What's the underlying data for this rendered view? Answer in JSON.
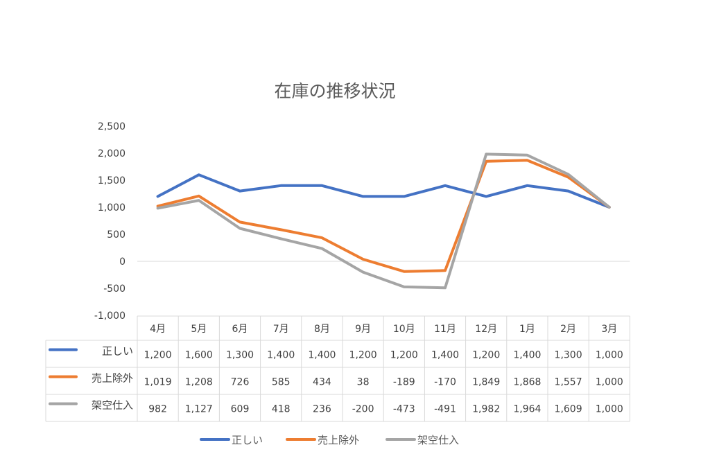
{
  "chart_data": {
    "type": "line",
    "title": "在庫の推移状況",
    "categories": [
      "4月",
      "5月",
      "6月",
      "7月",
      "8月",
      "9月",
      "10月",
      "11月",
      "12月",
      "1月",
      "2月",
      "3月"
    ],
    "ylim": [
      -1000,
      2500
    ],
    "yticks": [
      2500,
      2000,
      1500,
      1000,
      500,
      0,
      -500,
      -1000
    ],
    "ytick_labels": [
      "2,500",
      "2,000",
      "1,500",
      "1,000",
      "500",
      "0",
      "-500",
      "-1,000"
    ],
    "negative_tick_color": "#c00000",
    "grid": false,
    "legend_position": "bottom",
    "data_table": true,
    "series": [
      {
        "name": "正しい",
        "color": "#4472c4",
        "values": [
          1200,
          1600,
          1300,
          1400,
          1400,
          1200,
          1200,
          1400,
          1200,
          1400,
          1300,
          1000
        ],
        "labels": [
          "1,200",
          "1,600",
          "1,300",
          "1,400",
          "1,400",
          "1,200",
          "1,200",
          "1,400",
          "1,200",
          "1,400",
          "1,300",
          "1,000"
        ]
      },
      {
        "name": "売上除外",
        "color": "#ed7d31",
        "values": [
          1019,
          1208,
          726,
          585,
          434,
          38,
          -189,
          -170,
          1849,
          1868,
          1557,
          1000
        ],
        "labels": [
          "1,019",
          "1,208",
          "726",
          "585",
          "434",
          "38",
          "-189",
          "-170",
          "1,849",
          "1,868",
          "1,557",
          "1,000"
        ]
      },
      {
        "name": "架空仕入",
        "color": "#a5a5a5",
        "values": [
          982,
          1127,
          609,
          418,
          236,
          -200,
          -473,
          -491,
          1982,
          1964,
          1609,
          1000
        ],
        "labels": [
          "982",
          "1,127",
          "609",
          "418",
          "236",
          "-200",
          "-473",
          "-491",
          "1,982",
          "1,964",
          "1,609",
          "1,000"
        ]
      }
    ]
  }
}
